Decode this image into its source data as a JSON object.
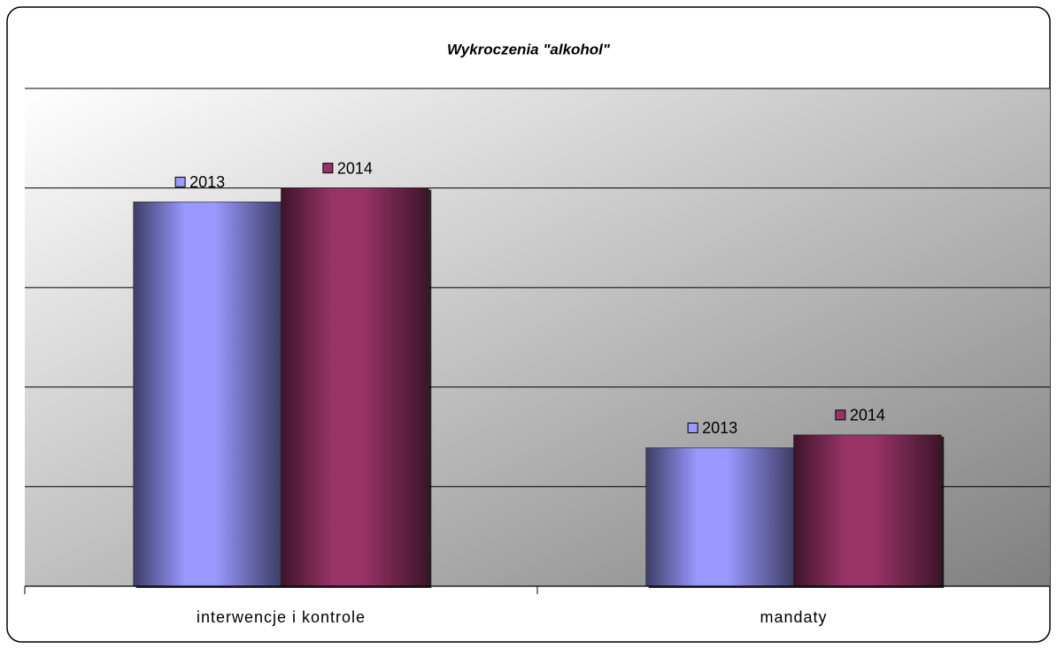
{
  "chart_data": {
    "type": "bar",
    "title": "Wykroczenia \"alkohol\"",
    "categories": [
      "interwencje i kontrole",
      "mandaty"
    ],
    "series": [
      {
        "name": "2013",
        "color": "#9999ff",
        "values": [
          3.86,
          1.39
        ]
      },
      {
        "name": "2014",
        "color": "#993366",
        "values": [
          4.0,
          1.52
        ]
      }
    ],
    "ylim": [
      0,
      5
    ],
    "yticks": [
      0,
      1,
      2,
      3,
      4,
      5
    ],
    "grid": true
  }
}
